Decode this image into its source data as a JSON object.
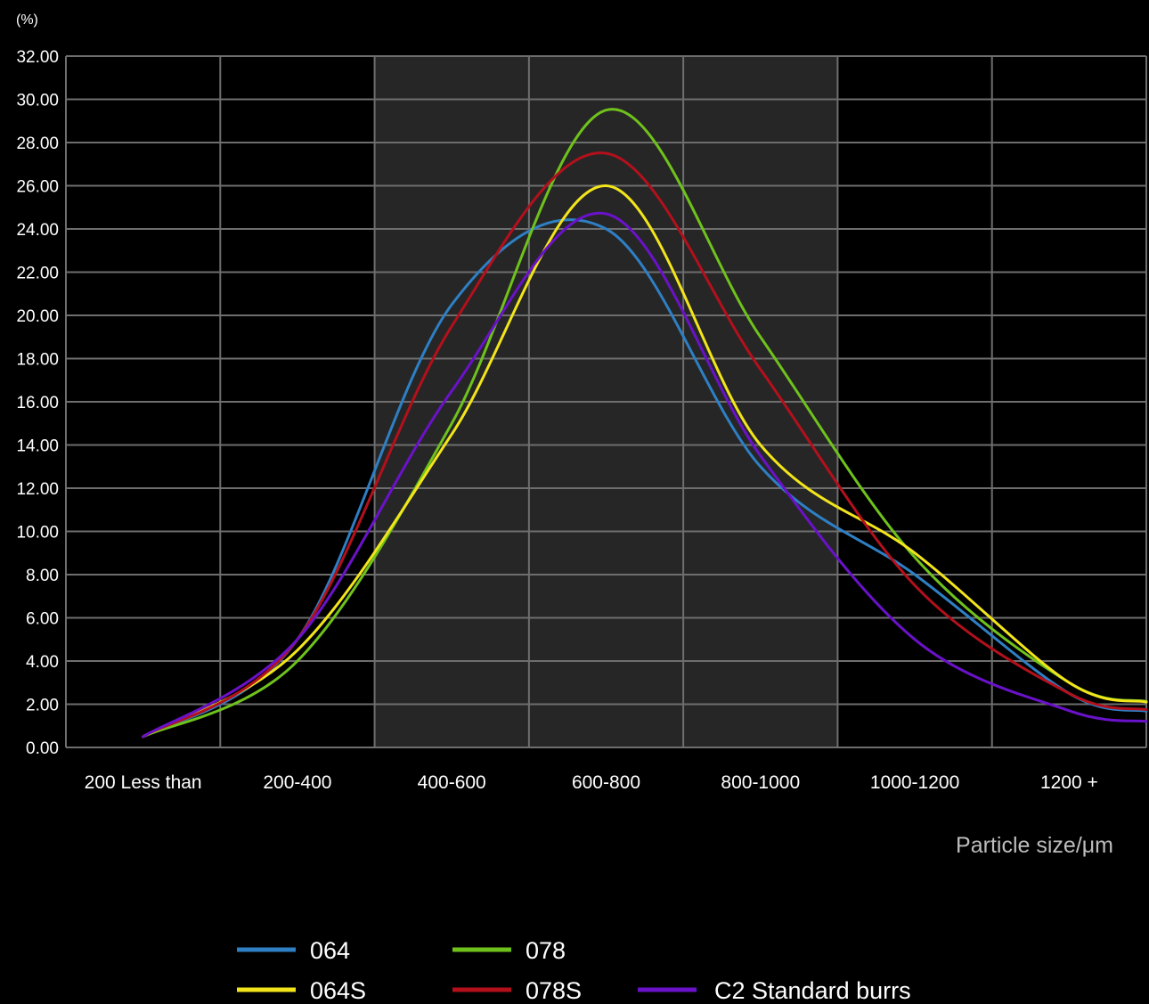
{
  "chart_data": {
    "type": "line",
    "y_unit_label": "(%)",
    "xlabel": "Particle size/μm",
    "ylabel": "",
    "ylim": [
      0,
      32
    ],
    "yticks": [
      "0.00",
      "2.00",
      "4.00",
      "6.00",
      "8.00",
      "10.00",
      "12.00",
      "14.00",
      "16.00",
      "18.00",
      "20.00",
      "22.00",
      "24.00",
      "26.00",
      "28.00",
      "30.00",
      "32.00"
    ],
    "categories": [
      "200 Less than",
      "200-400",
      "400-600",
      "600-800",
      "800-1000",
      "1000-1200",
      "1200 +"
    ],
    "highlighted_categories": [
      "400-600",
      "600-800",
      "800-1000"
    ],
    "grid": true,
    "legend_position": "bottom",
    "series": [
      {
        "name": "064",
        "color": "#2e7fc4",
        "values": [
          0.5,
          5.0,
          20.5,
          24.0,
          13.0,
          8.0,
          2.5
        ]
      },
      {
        "name": "078",
        "color": "#6fc21c",
        "values": [
          0.5,
          4.0,
          15.0,
          29.5,
          19.0,
          8.8,
          3.0
        ]
      },
      {
        "name": "064S",
        "color": "#f2e51b",
        "values": [
          0.5,
          4.5,
          14.5,
          26.0,
          14.0,
          9.0,
          3.0
        ]
      },
      {
        "name": "078S",
        "color": "#b3101c",
        "values": [
          0.5,
          5.0,
          19.5,
          27.5,
          17.5,
          7.5,
          2.5
        ]
      },
      {
        "name": "C2 Standard burrs",
        "color": "#6a12c9",
        "values": [
          0.5,
          5.0,
          16.5,
          24.7,
          13.5,
          5.0,
          1.7
        ]
      }
    ]
  }
}
